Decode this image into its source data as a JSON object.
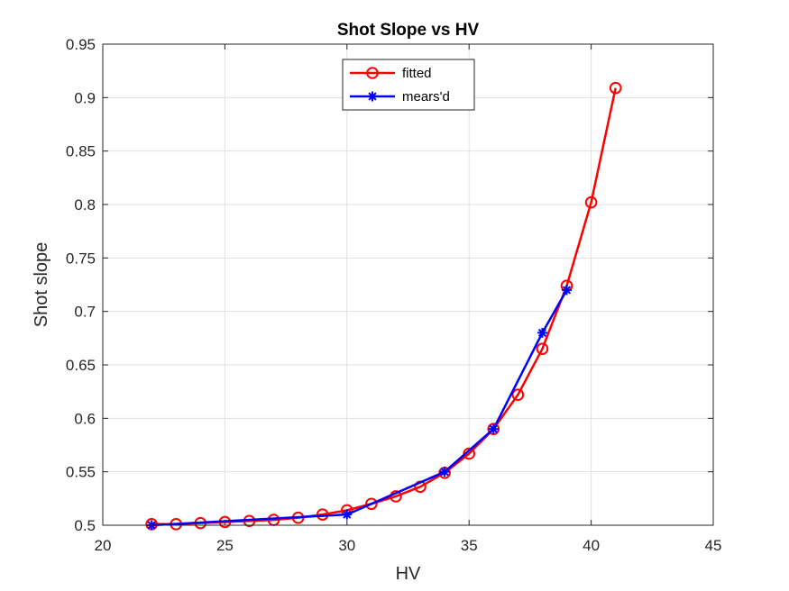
{
  "chart_data": {
    "type": "line",
    "title": "Shot Slope vs HV",
    "xlabel": "HV",
    "ylabel": "Shot slope",
    "xlim": [
      20,
      45
    ],
    "ylim": [
      0.5,
      0.95
    ],
    "xticks": [
      20,
      25,
      30,
      35,
      40,
      45
    ],
    "xtick_labels": [
      "20",
      "25",
      "30",
      "35",
      "40",
      "45"
    ],
    "yticks": [
      0.5,
      0.55,
      0.6,
      0.65,
      0.7,
      0.75,
      0.8,
      0.85,
      0.9,
      0.95
    ],
    "ytick_labels": [
      "0.5",
      "0.55",
      "0.6",
      "0.65",
      "0.7",
      "0.75",
      "0.8",
      "0.85",
      "0.9",
      "0.95"
    ],
    "grid": true,
    "legend_position": "top-center",
    "series": [
      {
        "name": "fitted",
        "color": "#ff0000",
        "marker": "circle",
        "x": [
          22,
          23,
          24,
          25,
          26,
          27,
          28,
          29,
          30,
          31,
          32,
          33,
          34,
          35,
          36,
          37,
          38,
          39,
          40,
          41
        ],
        "y": [
          0.501,
          0.501,
          0.502,
          0.503,
          0.504,
          0.505,
          0.507,
          0.51,
          0.514,
          0.52,
          0.527,
          0.536,
          0.549,
          0.567,
          0.59,
          0.622,
          0.665,
          0.724,
          0.802,
          0.909
        ]
      },
      {
        "name": "mears'd",
        "color": "#0000ff",
        "marker": "star",
        "x": [
          22,
          30,
          34,
          36,
          38,
          39
        ],
        "y": [
          0.5,
          0.51,
          0.55,
          0.59,
          0.68,
          0.72
        ]
      }
    ]
  }
}
